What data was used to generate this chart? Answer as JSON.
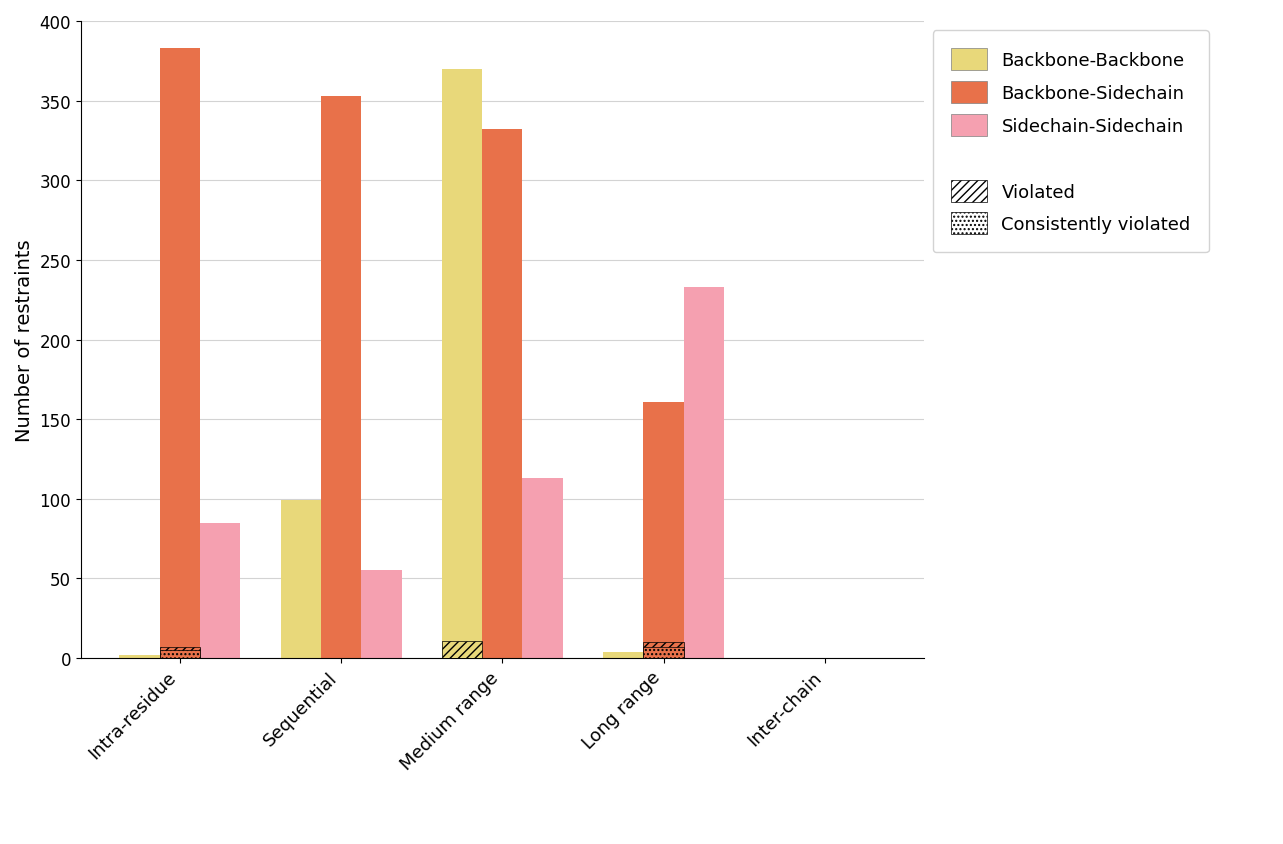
{
  "categories": [
    "Intra-residue",
    "Sequential",
    "Medium range",
    "Long range",
    "Inter-chain"
  ],
  "backbone_backbone": [
    2,
    99,
    370,
    4,
    0
  ],
  "backbone_sidechain": [
    383,
    353,
    332,
    161,
    0
  ],
  "sidechain_sidechain": [
    85,
    55,
    113,
    233,
    0
  ],
  "violated_bb": [
    0,
    0,
    11,
    0,
    0
  ],
  "violated_bsc": [
    7,
    0,
    0,
    10,
    0
  ],
  "violated_scsc": [
    0,
    0,
    0,
    0,
    0
  ],
  "consistently_bb": [
    0,
    0,
    0,
    0,
    0
  ],
  "consistently_bsc": [
    5,
    0,
    0,
    7,
    0
  ],
  "consistently_scsc": [
    0,
    0,
    0,
    0,
    0
  ],
  "color_bb": "#e8d87a",
  "color_bsc": "#e8714a",
  "color_scsc": "#f5a0b0",
  "ylabel": "Number of restraints",
  "ylim": [
    0,
    400
  ],
  "yticks": [
    0,
    50,
    100,
    150,
    200,
    250,
    300,
    350,
    400
  ],
  "figsize": [
    12.83,
    8.45
  ],
  "bar_width": 0.25,
  "legend_labels": [
    "Backbone-Backbone",
    "Backbone-Sidechain",
    "Sidechain-Sidechain",
    "Violated",
    "Consistently violated"
  ]
}
